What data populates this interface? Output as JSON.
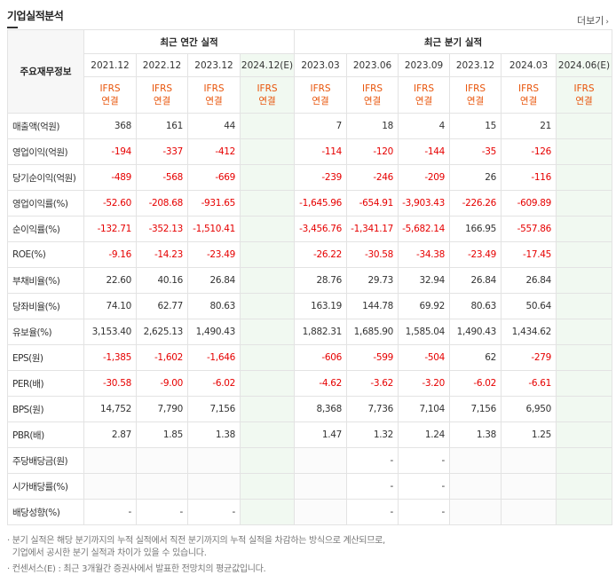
{
  "title": "기업실적분석",
  "more_label": "더보기",
  "header": {
    "row_label": "주요재무정보",
    "annual_label": "최근 연간 실적",
    "quarter_label": "최근 분기 실적",
    "annual_periods": [
      "2021.12",
      "2022.12",
      "2023.12",
      "2024.12(E)"
    ],
    "quarter_periods": [
      "2023.03",
      "2023.06",
      "2023.09",
      "2023.12",
      "2024.03",
      "2024.06(E)"
    ],
    "ifrs_top": "IFRS",
    "ifrs_bottom": "연결"
  },
  "rows": [
    {
      "label": "매출액(억원)",
      "values": [
        "368",
        "161",
        "44",
        "",
        "7",
        "18",
        "4",
        "15",
        "21",
        ""
      ]
    },
    {
      "label": "영업이익(억원)",
      "values": [
        "-194",
        "-337",
        "-412",
        "",
        "-114",
        "-120",
        "-144",
        "-35",
        "-126",
        ""
      ]
    },
    {
      "label": "당기순이익(억원)",
      "values": [
        "-489",
        "-568",
        "-669",
        "",
        "-239",
        "-246",
        "-209",
        "26",
        "-116",
        ""
      ]
    },
    {
      "label": "영업이익률(%)",
      "values": [
        "-52.60",
        "-208.68",
        "-931.65",
        "",
        "-1,645.96",
        "-654.91",
        "-3,903.43",
        "-226.26",
        "-609.89",
        ""
      ]
    },
    {
      "label": "순이익률(%)",
      "values": [
        "-132.71",
        "-352.13",
        "-1,510.41",
        "",
        "-3,456.76",
        "-1,341.17",
        "-5,682.14",
        "166.95",
        "-557.86",
        ""
      ]
    },
    {
      "label": "ROE(%)",
      "values": [
        "-9.16",
        "-14.23",
        "-23.49",
        "",
        "-26.22",
        "-30.58",
        "-34.38",
        "-23.49",
        "-17.45",
        ""
      ]
    },
    {
      "label": "부채비율(%)",
      "values": [
        "22.60",
        "40.16",
        "26.84",
        "",
        "28.76",
        "29.73",
        "32.94",
        "26.84",
        "26.84",
        ""
      ]
    },
    {
      "label": "당좌비율(%)",
      "values": [
        "74.10",
        "62.77",
        "80.63",
        "",
        "163.19",
        "144.78",
        "69.92",
        "80.63",
        "50.64",
        ""
      ]
    },
    {
      "label": "유보율(%)",
      "values": [
        "3,153.40",
        "2,625.13",
        "1,490.43",
        "",
        "1,882.31",
        "1,685.90",
        "1,585.04",
        "1,490.43",
        "1,434.62",
        ""
      ]
    },
    {
      "label": "EPS(원)",
      "values": [
        "-1,385",
        "-1,602",
        "-1,646",
        "",
        "-606",
        "-599",
        "-504",
        "62",
        "-279",
        ""
      ]
    },
    {
      "label": "PER(배)",
      "values": [
        "-30.58",
        "-9.00",
        "-6.02",
        "",
        "-4.62",
        "-3.62",
        "-3.20",
        "-6.02",
        "-6.61",
        ""
      ]
    },
    {
      "label": "BPS(원)",
      "values": [
        "14,752",
        "7,790",
        "7,156",
        "",
        "8,368",
        "7,736",
        "7,104",
        "7,156",
        "6,950",
        ""
      ]
    },
    {
      "label": "PBR(배)",
      "values": [
        "2.87",
        "1.85",
        "1.38",
        "",
        "1.47",
        "1.32",
        "1.24",
        "1.38",
        "1.25",
        ""
      ]
    },
    {
      "label": "주당배당금(원)",
      "values": [
        "",
        "",
        "",
        "",
        "",
        "-",
        "-",
        "",
        "",
        ""
      ]
    },
    {
      "label": "시가배당률(%)",
      "values": [
        "",
        "",
        "",
        "",
        "",
        "-",
        "-",
        "",
        "",
        ""
      ]
    },
    {
      "label": "배당성향(%)",
      "values": [
        "-",
        "-",
        "-",
        "",
        "",
        "-",
        "-",
        "",
        "",
        ""
      ]
    }
  ],
  "notes": [
    "· 분기 실적은 해당 분기까지의 누적 실적에서 직전 분기까지의 누적 실적을 차감하는 방식으로 계산되므로,",
    "  기업에서 공시한 분기 실적과 차이가 있을 수 있습니다.",
    "· 컨센서스(E) : 최근 3개월간 증권사에서 발표한 전망치의 평균값입니다."
  ],
  "colors": {
    "negative": "#e60000",
    "ifrs": "#e8540a",
    "estimate_bg": "#f1f9f1"
  }
}
